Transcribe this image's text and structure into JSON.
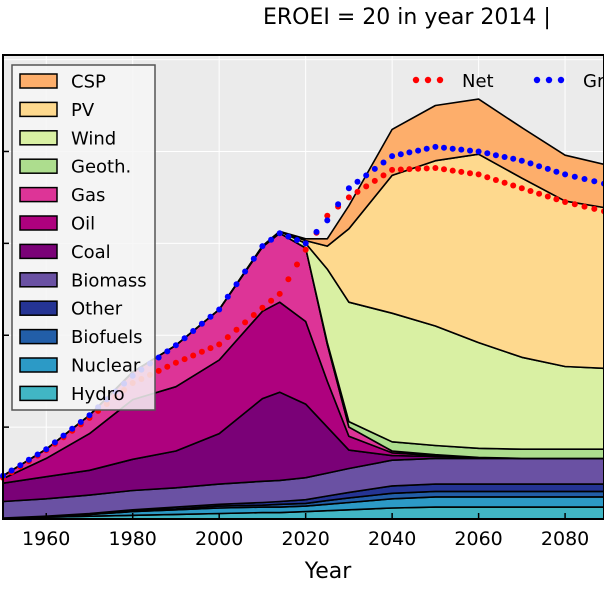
{
  "chart_data": {
    "type": "area",
    "title": "EROEI = 20 in year 2014   |",
    "xlabel": "Year",
    "ylabel": "",
    "xlim": [
      1950,
      2089
    ],
    "ylim": [
      0,
      505
    ],
    "xticks": [
      1960,
      1980,
      2000,
      2020,
      2040,
      2060,
      2080
    ],
    "grid": true,
    "stacked": true,
    "legend_position": "top-left",
    "x": [
      1950,
      1960,
      1970,
      1980,
      1990,
      2000,
      2010,
      2014,
      2020,
      2025,
      2030,
      2040,
      2050,
      2060,
      2070,
      2080,
      2089
    ],
    "series": [
      {
        "name": "Hydro",
        "color": "#41b6c4",
        "values": [
          1,
          2,
          3,
          4,
          5,
          6,
          7,
          7,
          8,
          9,
          10,
          12,
          13,
          13,
          13,
          13,
          13
        ]
      },
      {
        "name": "Nuclear",
        "color": "#2c9ac6",
        "values": [
          0,
          1,
          2,
          4,
          5,
          6,
          6,
          6,
          6,
          7,
          8,
          10,
          11,
          11,
          11,
          11,
          11
        ]
      },
      {
        "name": "Biofuels",
        "color": "#225ea8",
        "values": [
          0,
          0,
          0,
          1,
          1,
          2,
          2,
          3,
          3,
          4,
          5,
          6,
          6,
          6,
          6,
          6,
          6
        ]
      },
      {
        "name": "Other",
        "color": "#253494",
        "values": [
          0,
          0,
          1,
          1,
          2,
          2,
          3,
          3,
          4,
          5,
          6,
          8,
          8,
          8,
          8,
          8,
          8
        ]
      },
      {
        "name": "Biomass",
        "color": "#6a51a3",
        "values": [
          18,
          19,
          20,
          21,
          21,
          22,
          23,
          23,
          24,
          25,
          26,
          28,
          28,
          28,
          28,
          28,
          28
        ]
      },
      {
        "name": "Coal",
        "color": "#7a0177",
        "values": [
          20,
          24,
          27,
          34,
          40,
          55,
          90,
          96,
          80,
          50,
          20,
          5,
          2,
          1,
          0,
          0,
          0
        ]
      },
      {
        "name": "Oil",
        "color": "#ae017e",
        "values": [
          5,
          20,
          40,
          65,
          70,
          80,
          95,
          98,
          90,
          50,
          15,
          3,
          1,
          0,
          0,
          0,
          0
        ]
      },
      {
        "name": "Gas",
        "color": "#dd3497",
        "values": [
          3,
          10,
          20,
          30,
          45,
          55,
          70,
          75,
          80,
          40,
          10,
          2,
          1,
          0,
          0,
          0,
          0
        ]
      },
      {
        "name": "Geoth.",
        "color": "#addd8e",
        "values": [
          0,
          0,
          0,
          0,
          0,
          0,
          0,
          0,
          0,
          2,
          6,
          10,
          10,
          10,
          10,
          10,
          10
        ]
      },
      {
        "name": "Wind",
        "color": "#d9f0a3",
        "values": [
          0,
          0,
          0,
          0,
          0,
          0,
          1,
          2,
          5,
          80,
          130,
          140,
          130,
          115,
          100,
          90,
          88
        ]
      },
      {
        "name": "PV",
        "color": "#fed98e",
        "values": [
          0,
          0,
          0,
          0,
          0,
          0,
          0,
          0,
          3,
          25,
          80,
          150,
          180,
          205,
          195,
          180,
          175
        ]
      },
      {
        "name": "CSP",
        "color": "#fdae6b",
        "values": [
          0,
          0,
          0,
          0,
          0,
          0,
          0,
          0,
          2,
          8,
          25,
          50,
          60,
          60,
          55,
          50,
          47
        ]
      }
    ],
    "line_series": [
      {
        "name": "Net",
        "color": "#ff0000",
        "values": [
          45,
          75,
          110,
          148,
          170,
          190,
          230,
          245,
          293,
          330,
          350,
          380,
          382,
          375,
          360,
          345,
          335
        ]
      },
      {
        "name": "Gross",
        "color": "#0000ff",
        "values": [
          47,
          76,
          113,
          156,
          189,
          228,
          297,
          311,
          300,
          325,
          360,
          395,
          405,
          400,
          390,
          375,
          365
        ]
      }
    ],
    "legend_labels": {
      "net": "Net",
      "gross": "Gr"
    }
  }
}
